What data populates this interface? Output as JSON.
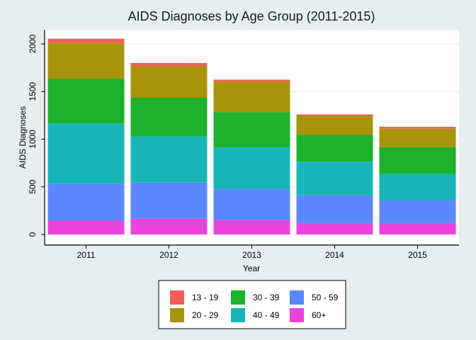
{
  "chart_data": {
    "type": "bar",
    "stacked": true,
    "title": "AIDS Diagnoses by Age Group (2011-2015)",
    "xlabel": "Year",
    "ylabel": "AIDS Diagnoses",
    "categories": [
      "2011",
      "2012",
      "2013",
      "2014",
      "2015"
    ],
    "yticks": [
      0,
      500,
      1000,
      1500,
      2000
    ],
    "ylim": [
      -100,
      2150
    ],
    "grid": true,
    "legend_position": "bottom",
    "series": [
      {
        "name": "60+",
        "color": "#ea45db",
        "values": [
          145,
          165,
          150,
          120,
          120
        ]
      },
      {
        "name": "50 - 59",
        "color": "#5b88ff",
        "values": [
          385,
          380,
          325,
          290,
          240
        ]
      },
      {
        "name": "40 - 49",
        "color": "#19b6b9",
        "values": [
          635,
          485,
          440,
          355,
          275
        ]
      },
      {
        "name": "30 - 39",
        "color": "#1cb22c",
        "values": [
          470,
          405,
          370,
          280,
          280
        ]
      },
      {
        "name": "20 - 29",
        "color": "#a8940b",
        "values": [
          375,
          335,
          320,
          200,
          195
        ]
      },
      {
        "name": "13 - 19",
        "color": "#f15f58",
        "values": [
          45,
          30,
          20,
          15,
          20
        ]
      }
    ],
    "legend_order": [
      "13 - 19",
      "30 - 39",
      "50 - 59",
      "20 - 29",
      "40 - 49",
      "60+"
    ]
  }
}
